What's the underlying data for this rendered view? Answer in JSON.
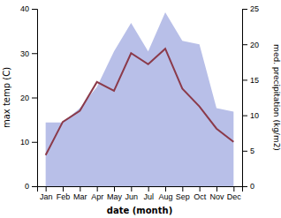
{
  "chart_data": {
    "type": "line",
    "xlabel": "date (month)",
    "ylabel": "max temp (C)",
    "y2label": "med. precipitation (kg/m2)",
    "categories": [
      "Jan",
      "Feb",
      "Mar",
      "Apr",
      "May",
      "Jun",
      "Jul",
      "Aug",
      "Sep",
      "Oct",
      "Nov",
      "Dec"
    ],
    "series": [
      {
        "type": "area",
        "axis": "y2",
        "color": "#b8bfe8",
        "values": [
          9,
          9,
          11,
          14,
          19,
          23,
          19,
          24.5,
          20.5,
          20,
          11,
          10.5
        ]
      },
      {
        "type": "line",
        "color": "#8B3A4A",
        "values": [
          7,
          14.5,
          17,
          23.5,
          21.5,
          30,
          27.5,
          31,
          22,
          18,
          13,
          10
        ]
      }
    ],
    "ylim": [
      0,
      40
    ],
    "yticks": [
      0,
      10,
      20,
      30,
      40
    ],
    "y2lim": [
      0,
      25
    ],
    "y2ticks": [
      0,
      5,
      10,
      15,
      20,
      25
    ]
  }
}
